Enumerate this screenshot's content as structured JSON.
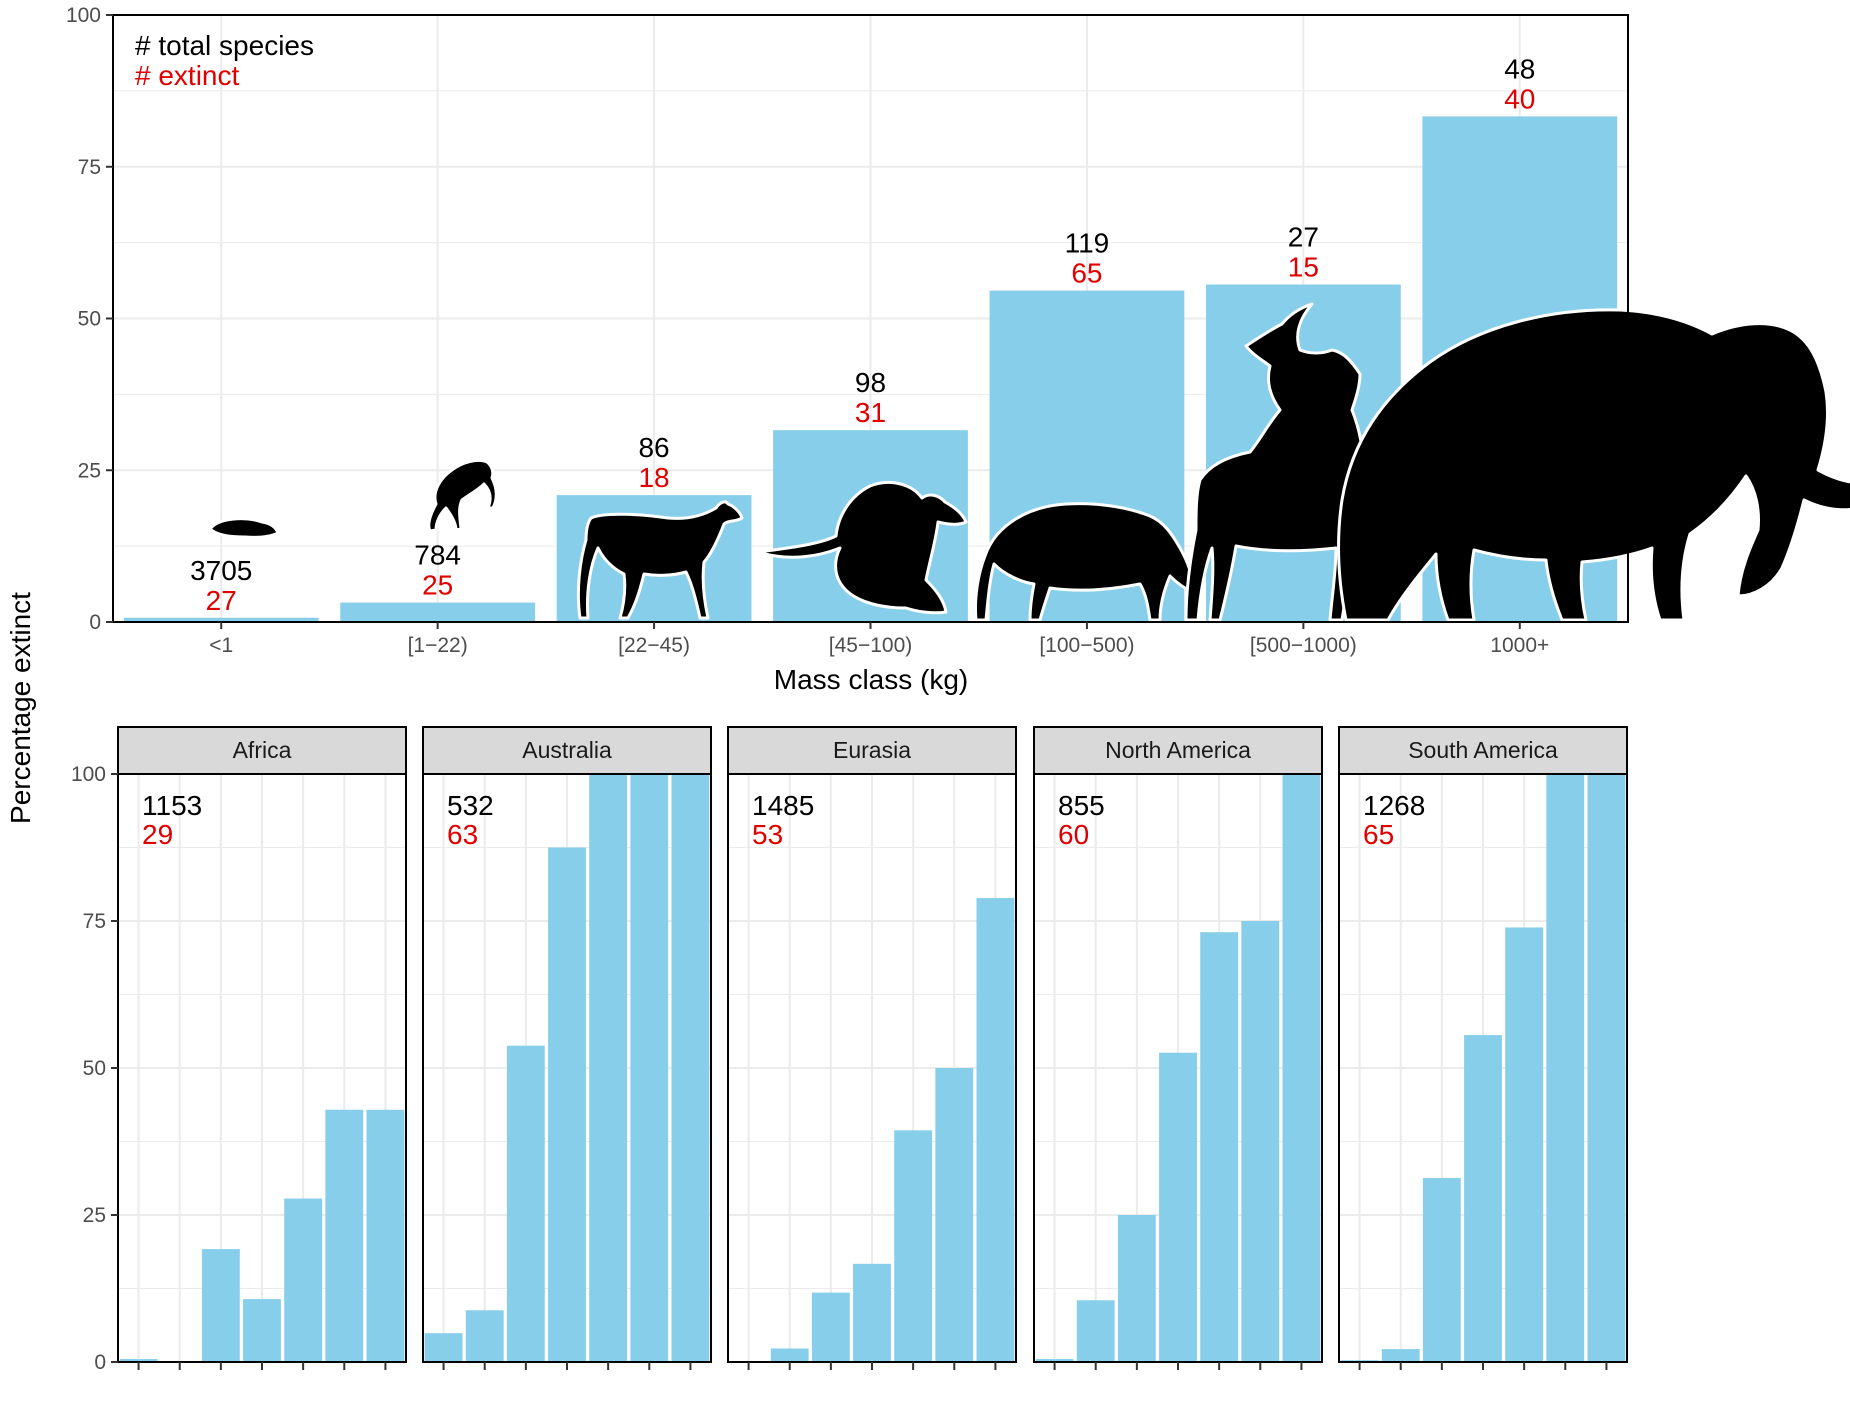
{
  "chart_data": [
    {
      "type": "bar",
      "panel": "overall",
      "categories": [
        "<1",
        "[1−22)",
        "[22−45)",
        "[45−100)",
        "[100−500)",
        "[500−1000)",
        "1000+"
      ],
      "values": [
        0.7,
        3.2,
        20.9,
        31.6,
        54.6,
        55.6,
        83.3
      ],
      "total_species": [
        "3705",
        "784",
        "86",
        "98",
        "119",
        "27",
        "48"
      ],
      "extinct": [
        "27",
        "25",
        "18",
        "31",
        "65",
        "15",
        "40"
      ],
      "xlabel": "Mass class (kg)",
      "ylabel": "Percentage extinct",
      "ylim": [
        0,
        100
      ],
      "yticks": [
        "0",
        "25",
        "50",
        "75",
        "100"
      ],
      "legend": {
        "total": "# total species",
        "extinct": "# extinct",
        "placement": "top-left"
      },
      "grid": true,
      "silhouettes": [
        "rodent",
        "primate",
        "wolf",
        "kangaroo",
        "tapir",
        "irish-elk",
        "mammoth"
      ]
    },
    {
      "type": "bar",
      "panel": "by-continent",
      "ylim": [
        0,
        100
      ],
      "yticks": [
        "0",
        "25",
        "50",
        "75",
        "100"
      ],
      "grid": true,
      "facets": [
        {
          "name": "Africa",
          "total": "1153",
          "extinct": "29",
          "values": [
            0.5,
            0.1,
            19.2,
            10.7,
            27.8,
            42.9,
            42.9
          ]
        },
        {
          "name": "Australia",
          "total": "532",
          "extinct": "63",
          "values": [
            4.9,
            8.8,
            53.8,
            87.5,
            100,
            100,
            100
          ]
        },
        {
          "name": "Eurasia",
          "total": "1485",
          "extinct": "53",
          "values": [
            0.1,
            2.3,
            11.8,
            16.7,
            39.4,
            50.0,
            78.9
          ]
        },
        {
          "name": "North America",
          "total": "855",
          "extinct": "60",
          "values": [
            0.5,
            10.5,
            25.0,
            52.6,
            73.1,
            75.0,
            100
          ]
        },
        {
          "name": "South America",
          "total": "1268",
          "extinct": "65",
          "values": [
            0.3,
            2.2,
            31.3,
            55.6,
            73.9,
            100,
            100
          ]
        }
      ]
    }
  ],
  "colors": {
    "bar": "#87ceeb",
    "extinct_text": "#e00000",
    "grid": "#ebebeb",
    "strip": "#d9d9d9"
  }
}
